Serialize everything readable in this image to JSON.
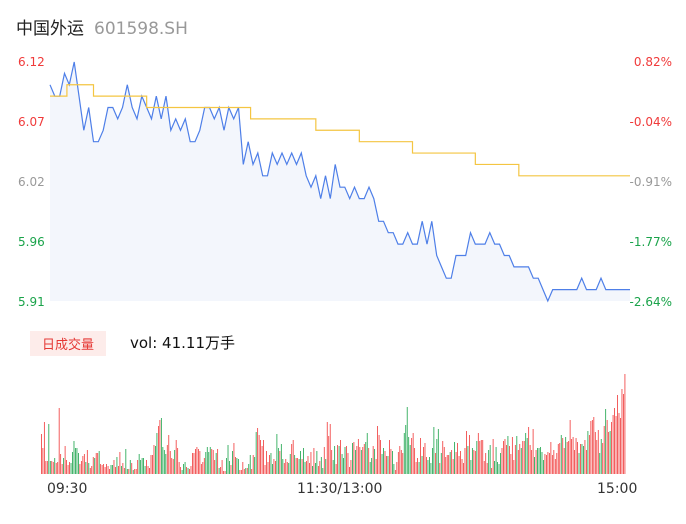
{
  "header": {
    "name": "中国外运",
    "code": "601598.SH"
  },
  "colors": {
    "price_line": "#4e7fe8",
    "avg_line": "#f4c542",
    "up": "#f03a3a",
    "down": "#1aa34a",
    "flat": "#999999",
    "area": "#f3f6fc"
  },
  "volume": {
    "badge": "日成交量",
    "label": "vol: 41.11万手"
  },
  "chart_data": [
    {
      "type": "line",
      "x_ticks": [
        "09:30",
        "11:30/13:00",
        "15:00"
      ],
      "y_left_ticks": [
        "6.12",
        "6.07",
        "6.02",
        "5.96",
        "5.91"
      ],
      "y_right_ticks": [
        "0.82%",
        "-0.04%",
        "-0.91%",
        "-1.77%",
        "-2.64%"
      ],
      "ylim": [
        5.91,
        6.12
      ],
      "x": [
        0,
        2,
        4,
        6,
        8,
        10,
        12,
        14,
        16,
        18,
        20,
        22,
        24,
        26,
        28,
        30,
        32,
        34,
        36,
        38,
        40,
        42,
        44,
        46,
        48,
        50,
        52,
        54,
        56,
        58,
        60,
        62,
        64,
        66,
        68,
        70,
        72,
        74,
        76,
        78,
        80,
        82,
        84,
        86,
        88,
        90,
        92,
        94,
        96,
        98,
        100,
        102,
        104,
        106,
        108,
        110,
        112,
        114,
        116,
        118,
        120,
        122,
        124,
        126,
        128,
        130,
        132,
        134,
        136,
        138,
        140,
        142,
        144,
        146,
        148,
        150,
        152,
        154,
        156,
        158,
        160,
        162,
        164,
        166,
        168,
        170,
        172,
        174,
        176,
        178,
        180,
        182,
        184,
        186,
        188,
        190,
        192,
        194,
        196,
        198,
        200,
        202,
        204,
        206,
        208,
        210,
        212,
        214,
        216,
        218,
        220,
        222,
        224,
        226,
        228,
        230,
        232,
        234,
        236,
        238,
        240
      ],
      "series": [
        {
          "values": [
            6.1,
            6.09,
            6.09,
            6.11,
            6.1,
            6.12,
            6.09,
            6.06,
            6.08,
            6.05,
            6.05,
            6.06,
            6.08,
            6.08,
            6.07,
            6.08,
            6.1,
            6.08,
            6.07,
            6.09,
            6.08,
            6.07,
            6.09,
            6.07,
            6.09,
            6.06,
            6.07,
            6.06,
            6.07,
            6.05,
            6.05,
            6.06,
            6.08,
            6.08,
            6.07,
            6.08,
            6.06,
            6.08,
            6.07,
            6.08,
            6.03,
            6.05,
            6.03,
            6.04,
            6.02,
            6.02,
            6.04,
            6.03,
            6.04,
            6.03,
            6.04,
            6.03,
            6.04,
            6.02,
            6.01,
            6.02,
            6.0,
            6.02,
            6.0,
            6.03,
            6.01,
            6.01,
            6.0,
            6.01,
            6.0,
            6.0,
            6.01,
            6.0,
            5.98,
            5.98,
            5.97,
            5.97,
            5.96,
            5.96,
            5.97,
            5.96,
            5.96,
            5.98,
            5.96,
            5.98,
            5.95,
            5.94,
            5.93,
            5.93,
            5.95,
            5.95,
            5.95,
            5.97,
            5.96,
            5.96,
            5.96,
            5.97,
            5.96,
            5.96,
            5.95,
            5.95,
            5.94,
            5.94,
            5.94,
            5.94,
            5.93,
            5.93,
            5.92,
            5.91,
            5.92,
            5.92,
            5.92,
            5.92,
            5.92,
            5.92,
            5.93,
            5.92,
            5.92,
            5.92,
            5.93,
            5.92,
            5.92,
            5.92,
            5.92,
            5.92,
            5.92
          ]
        },
        {
          "steps": [
            [
              0,
              6.09
            ],
            [
              7,
              6.1
            ],
            [
              18,
              6.09
            ],
            [
              22,
              6.09
            ],
            [
              40,
              6.08
            ],
            [
              60,
              6.08
            ],
            [
              83,
              6.07
            ],
            [
              110,
              6.06
            ],
            [
              128,
              6.05
            ],
            [
              150,
              6.04
            ],
            [
              176,
              6.03
            ],
            [
              194,
              6.02
            ],
            [
              210,
              6.02
            ],
            [
              240,
              6.02
            ]
          ]
        }
      ]
    },
    {
      "type": "bar",
      "values": [
        40,
        26,
        52,
        13,
        13,
        50,
        13,
        13,
        12,
        16,
        11,
        12,
        66,
        20,
        10,
        16,
        28,
        14,
        9,
        12,
        11,
        22,
        33,
        26,
        26,
        21,
        10,
        13,
        18,
        20,
        12,
        24,
        11,
        6,
        8,
        17,
        16,
        21,
        21,
        23,
        10,
        9,
        10,
        7,
        10,
        8,
        5,
        9,
        9,
        14,
        7,
        17,
        8,
        22,
        8,
        11,
        6,
        25,
        5,
        5,
        14,
        11,
        4,
        5,
        5,
        14,
        20,
        14,
        16,
        16,
        8,
        14,
        8,
        6,
        19,
        19,
        29,
        28,
        41,
        48,
        54,
        56,
        27,
        24,
        20,
        29,
        39,
        23,
        16,
        15,
        24,
        34,
        26,
        12,
        7,
        4,
        10,
        12,
        7,
        6,
        5,
        8,
        21,
        21,
        25,
        27,
        25,
        23,
        10,
        12,
        16,
        22,
        27,
        22,
        27,
        25,
        24,
        14,
        21,
        25,
        6,
        7,
        14,
        3,
        3,
        16,
        29,
        13,
        9,
        23,
        31,
        17,
        16,
        15,
        4,
        4,
        12,
        5,
        6,
        6,
        10,
        19,
        5,
        19,
        17,
        42,
        46,
        39,
        34,
        28,
        34,
        9,
        23,
        12,
        19,
        21,
        10,
        15,
        13,
        40,
        26,
        23,
        30,
        15,
        11,
        15,
        12,
        11,
        20,
        30,
        34,
        19,
        16,
        16,
        15,
        23,
        15,
        26,
        12,
        13,
        18,
        11,
        22,
        8,
        26,
        11,
        23,
        8,
        13,
        17,
        6,
        27,
        15,
        52,
        38,
        50,
        24,
        14,
        28,
        10,
        29,
        28,
        34,
        20,
        16,
        27,
        28,
        21,
        7,
        14,
        31,
        32,
        24,
        28,
        35,
        27,
        24,
        27,
        30,
        32,
        41,
        26,
        12,
        16,
        28,
        25,
        15,
        48,
        39,
        34,
        20,
        26,
        23,
        18,
        18,
        34,
        25,
        23,
        10,
        4,
        12,
        22,
        28,
        24,
        21,
        41,
        49,
        67,
        37,
        29,
        36,
        41,
        26,
        12,
        16,
        12,
        36,
        18,
        27,
        31,
        17,
        14,
        17,
        11,
        26,
        47,
        21,
        35,
        45,
        11,
        21,
        33,
        27,
        17,
        19,
        19,
        22,
        24,
        15,
        32,
        22,
        31,
        18,
        23,
        15,
        11,
        26,
        43,
        28,
        39,
        14,
        26,
        24,
        23,
        33,
        41,
        33,
        34,
        34,
        13,
        21,
        11,
        24,
        29,
        6,
        35,
        13,
        27,
        12,
        10,
        21,
        26,
        33,
        35,
        29,
        38,
        28,
        20,
        37,
        14,
        29,
        38,
        24,
        30,
        26,
        33,
        33,
        41,
        36,
        47,
        29,
        24,
        45,
        17,
        24,
        26,
        26,
        27,
        22,
        14,
        20,
        19,
        22,
        21,
        32,
        19,
        24,
        15,
        21,
        30,
        31,
        39,
        36,
        26,
        37,
        32,
        33,
        54,
        35,
        37,
        24,
        36,
        32,
        21,
        30,
        30,
        28,
        34,
        24,
        43,
        39,
        53,
        54,
        57,
        42,
        34,
        44,
        21,
        35,
        31,
        48,
        65,
        54,
        42,
        43,
        52,
        59,
        66,
        58,
        79,
        61,
        56,
        85,
        80,
        100
      ],
      "colors": "up/down per minute"
    }
  ]
}
